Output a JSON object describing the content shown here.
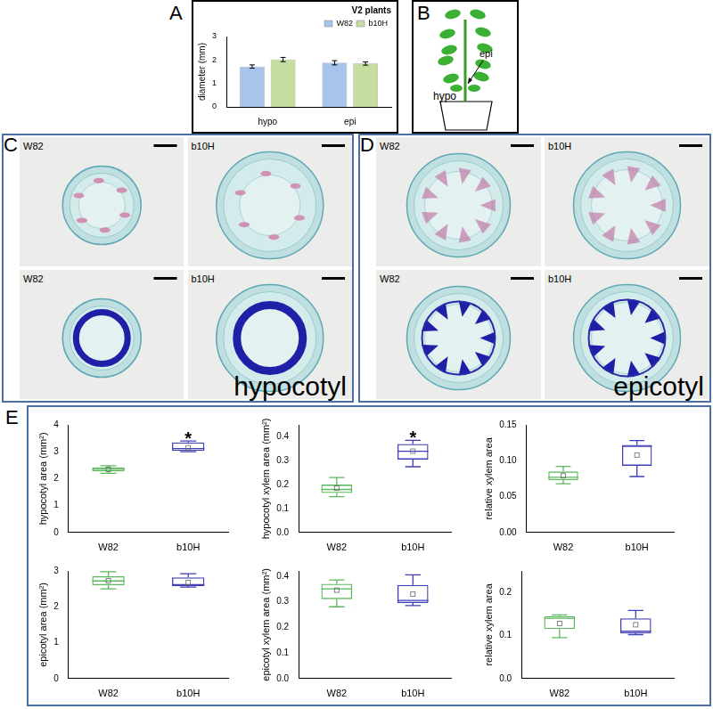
{
  "panel_labels": [
    "A",
    "B",
    "C",
    "D",
    "E"
  ],
  "chart_data": [
    {
      "type": "bar",
      "title": "V2 plants",
      "y_label": "diameter (mm)",
      "categories": [
        "hypo",
        "epi"
      ],
      "series": [
        {
          "name": "W82",
          "color": "#a9c4eb",
          "values": [
            1.72,
            1.88
          ],
          "errors": [
            0.07,
            0.09
          ]
        },
        {
          "name": "b10H",
          "color": "#c5dd9f",
          "values": [
            2.02,
            1.85
          ],
          "errors": [
            0.09,
            0.07
          ]
        }
      ],
      "ylim": [
        0,
        3
      ],
      "yticks": [
        0,
        1,
        2,
        3
      ],
      "legend": "upper right",
      "grid": false
    },
    {
      "type": "box",
      "y_label": "hypocotyl area (mm²)",
      "categories": [
        "W82",
        "b10H"
      ],
      "colors": [
        "#5cb85c",
        "#3f3fb5"
      ],
      "min": [
        2.2,
        3.0
      ],
      "q1": [
        2.27,
        3.03
      ],
      "median": [
        2.35,
        3.12
      ],
      "q3": [
        2.42,
        3.35
      ],
      "max": [
        2.48,
        3.4
      ],
      "mean": [
        2.35,
        3.15
      ],
      "annotation": {
        "category": "b10H",
        "text": "*"
      },
      "ylim": [
        0,
        4
      ],
      "yticks": [
        0,
        1,
        2,
        3,
        4
      ],
      "grid": false
    },
    {
      "type": "box",
      "y_label": "hypocotyl xylem area (mm²)",
      "categories": [
        "W82",
        "b10H"
      ],
      "colors": [
        "#5cb85c",
        "#3f3fb5"
      ],
      "min": [
        0.15,
        0.275
      ],
      "q1": [
        0.165,
        0.305
      ],
      "median": [
        0.18,
        0.34
      ],
      "q3": [
        0.2,
        0.37
      ],
      "max": [
        0.23,
        0.385
      ],
      "mean": [
        0.185,
        0.34
      ],
      "annotation": {
        "category": "b10H",
        "text": "*"
      },
      "ylim": [
        0,
        0.45
      ],
      "yticks": [
        {
          "value": 0,
          "label": "0.0"
        },
        0.1,
        0.2,
        0.3,
        0.4
      ],
      "grid": false
    },
    {
      "type": "box",
      "y_label": "relative xylem area",
      "categories": [
        "W82",
        "b10H"
      ],
      "colors": [
        "#5cb85c",
        "#3f3fb5"
      ],
      "min": [
        0.068,
        0.078
      ],
      "q1": [
        0.073,
        0.093
      ],
      "median": [
        0.077,
        0.12
      ],
      "q3": [
        0.085,
        0.122
      ],
      "max": [
        0.092,
        0.128
      ],
      "mean": [
        0.079,
        0.108
      ],
      "ylim": [
        0,
        0.15
      ],
      "yticks": [
        {
          "value": 0,
          "label": "0.00"
        },
        0.05,
        {
          "value": 0.1,
          "label": "0.10"
        },
        0.15
      ],
      "grid": false
    },
    {
      "type": "box",
      "y_label": "epicotyl area (mm²)",
      "categories": [
        "W82",
        "b10H"
      ],
      "colors": [
        "#5cb85c",
        "#3f3fb5"
      ],
      "min": [
        2.5,
        2.55
      ],
      "q1": [
        2.6,
        2.58
      ],
      "median": [
        2.72,
        2.62
      ],
      "q3": [
        2.85,
        2.82
      ],
      "max": [
        2.98,
        2.92
      ],
      "mean": [
        2.73,
        2.68
      ],
      "ylim": [
        0,
        3
      ],
      "yticks": [
        0,
        1,
        2,
        3
      ],
      "grid": false
    },
    {
      "type": "box",
      "y_label": "epicotyl xylem area (mm²)",
      "categories": [
        "W82",
        "b10H"
      ],
      "colors": [
        "#5cb85c",
        "#3f3fb5"
      ],
      "min": [
        0.28,
        0.285
      ],
      "q1": [
        0.31,
        0.295
      ],
      "median": [
        0.35,
        0.305
      ],
      "q3": [
        0.37,
        0.365
      ],
      "max": [
        0.385,
        0.405
      ],
      "mean": [
        0.345,
        0.33
      ],
      "ylim": [
        0,
        0.42
      ],
      "yticks": [
        {
          "value": 0,
          "label": "0.0"
        },
        0.1,
        0.2,
        0.3,
        0.4
      ],
      "grid": false
    },
    {
      "type": "box",
      "y_label": "relative xylem area",
      "categories": [
        "W82",
        "b10H"
      ],
      "colors": [
        "#5cb85c",
        "#3f3fb5"
      ],
      "min": [
        0.095,
        0.102
      ],
      "q1": [
        0.115,
        0.105
      ],
      "median": [
        0.14,
        0.11
      ],
      "q3": [
        0.145,
        0.14
      ],
      "max": [
        0.148,
        0.158
      ],
      "mean": [
        0.128,
        0.125
      ],
      "ylim": [
        0,
        0.25
      ],
      "yticks": [
        {
          "value": 0,
          "label": "0.0"
        },
        0.1,
        0.2
      ],
      "grid": false
    }
  ],
  "diagram": {
    "labels": [
      "hypo",
      "epi"
    ]
  },
  "micrographs": [
    {
      "tissue": "hypocotyl",
      "image_labels": [
        "W82",
        "b10H",
        "W82",
        "b10H"
      ]
    },
    {
      "tissue": "epicotyl",
      "image_labels": [
        "W82",
        "b10H",
        "W82",
        "b10H"
      ]
    }
  ]
}
